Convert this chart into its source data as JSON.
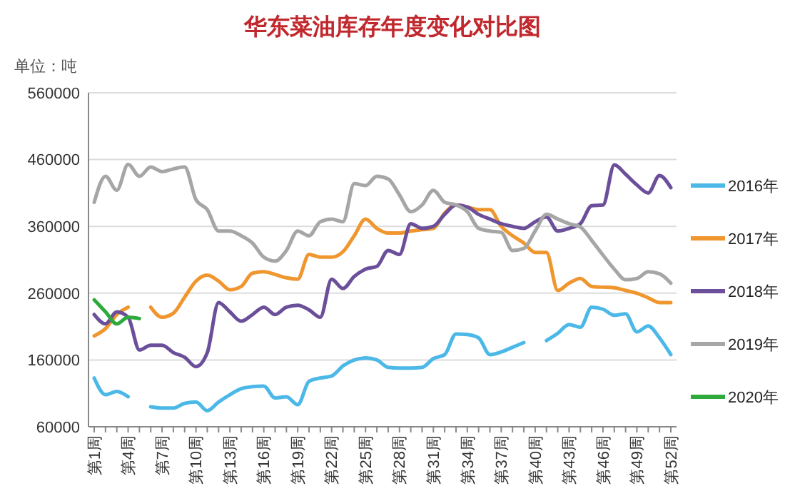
{
  "chart_data": {
    "type": "line",
    "title": "华东菜油库存年度变化对比图",
    "annotations": [
      "单位：吨"
    ],
    "categories": [
      "第1周",
      null,
      null,
      "第4周",
      null,
      null,
      "第7周",
      null,
      null,
      "第10周",
      null,
      null,
      "第13周",
      null,
      null,
      "第16周",
      null,
      null,
      "第19周",
      null,
      null,
      "第22周",
      null,
      null,
      "第25周",
      null,
      null,
      "第28周",
      null,
      null,
      "第31周",
      null,
      null,
      "第34周",
      null,
      null,
      "第37周",
      null,
      null,
      "第40周",
      null,
      null,
      "第43周",
      null,
      null,
      "第46周",
      null,
      null,
      "第49周",
      null,
      null,
      "第52周"
    ],
    "ylim": [
      60000,
      560000
    ],
    "yticks": [
      60000,
      160000,
      260000,
      360000,
      460000,
      560000
    ],
    "grid": "y",
    "legend": "right",
    "series": [
      {
        "name": "2016年",
        "color": "#4bb8e8",
        "values": [
          133000,
          108000,
          113000,
          105000,
          null,
          90000,
          88000,
          88000,
          95000,
          97000,
          84000,
          97000,
          108000,
          117000,
          120000,
          121000,
          103000,
          105000,
          93000,
          128000,
          133000,
          136000,
          151000,
          160000,
          163000,
          160000,
          149000,
          148000,
          148000,
          149000,
          162000,
          168000,
          199000,
          198000,
          193000,
          168000,
          172000,
          179000,
          186000,
          null,
          189000,
          200000,
          213000,
          209000,
          239000,
          236000,
          227000,
          229000,
          202000,
          211000,
          193000,
          168000
        ]
      },
      {
        "name": "2017年",
        "color": "#f0962e",
        "values": [
          196000,
          207000,
          228000,
          239000,
          null,
          239000,
          224000,
          230000,
          254000,
          278000,
          287000,
          278000,
          265000,
          270000,
          290000,
          292000,
          288000,
          283000,
          281000,
          318000,
          314000,
          314000,
          322000,
          346000,
          371000,
          357000,
          350000,
          350000,
          353000,
          355000,
          357000,
          380000,
          392000,
          389000,
          385000,
          385000,
          360000,
          346000,
          335000,
          321000,
          321000,
          264000,
          275000,
          282000,
          270000,
          269000,
          268000,
          264000,
          260000,
          253000,
          246000,
          246000
        ]
      },
      {
        "name": "2018年",
        "color": "#6b4f9a",
        "values": [
          228000,
          214000,
          232000,
          224000,
          175000,
          182000,
          182000,
          171000,
          164000,
          150000,
          171000,
          246000,
          232000,
          218000,
          228000,
          239000,
          228000,
          239000,
          242000,
          235000,
          224000,
          281000,
          267000,
          285000,
          296000,
          300000,
          324000,
          318000,
          364000,
          357000,
          360000,
          378000,
          392000,
          389000,
          378000,
          371000,
          364000,
          360000,
          357000,
          367000,
          374000,
          353000,
          357000,
          364000,
          391000,
          392000,
          452000,
          438000,
          422000,
          410000,
          436000,
          418000
        ]
      },
      {
        "name": "2019年",
        "color": "#a6a6a6",
        "values": [
          396000,
          435000,
          414000,
          453000,
          435000,
          449000,
          442000,
          446000,
          449000,
          400000,
          385000,
          353000,
          353000,
          346000,
          335000,
          314000,
          308000,
          324000,
          353000,
          346000,
          367000,
          371000,
          367000,
          424000,
          421000,
          435000,
          431000,
          407000,
          382000,
          392000,
          414000,
          396000,
          392000,
          382000,
          357000,
          353000,
          351000,
          324000,
          327000,
          353000,
          378000,
          371000,
          364000,
          359000,
          339000,
          317000,
          296000,
          280000,
          282000,
          292000,
          289000,
          275000
        ]
      },
      {
        "name": "2020年",
        "color": "#2eaa3c",
        "values": [
          250000,
          232000,
          214000,
          224000,
          222000,
          null,
          null,
          null,
          null,
          null,
          null,
          null,
          null,
          null,
          null,
          null,
          null,
          null,
          null,
          null,
          null,
          null,
          null,
          null,
          null,
          null,
          null,
          null,
          null,
          null,
          null,
          null,
          null,
          null,
          null,
          null,
          null,
          null,
          null,
          null,
          null,
          null,
          null,
          null,
          null,
          null,
          null,
          null,
          null,
          null,
          null,
          null
        ]
      }
    ]
  }
}
